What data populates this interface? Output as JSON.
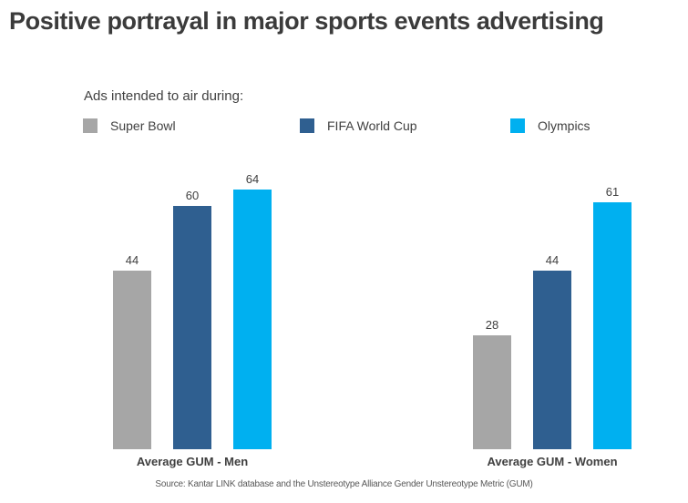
{
  "header": {
    "title": "Positive portrayal in major sports events advertising"
  },
  "legend": {
    "intro": "Ads intended to air during:",
    "items": [
      {
        "label": "Super Bowl",
        "color": "#A6A6A6"
      },
      {
        "label": "FIFA World Cup",
        "color": "#2F5F90"
      },
      {
        "label": "Olympics",
        "color": "#00B0F0"
      }
    ]
  },
  "chart_data": {
    "type": "bar",
    "title": "Positive portrayal in major sports events advertising",
    "categories": [
      "Average GUM - Men",
      "Average GUM - Women"
    ],
    "series": [
      {
        "name": "Super Bowl",
        "color": "#A6A6A6",
        "values": [
          44,
          28
        ]
      },
      {
        "name": "FIFA World Cup",
        "color": "#2F5F90",
        "values": [
          60,
          44
        ]
      },
      {
        "name": "Olympics",
        "color": "#00B0F0",
        "values": [
          64,
          61
        ]
      }
    ],
    "value_labels": true,
    "axes_visible": false,
    "grid": false,
    "legend_position": "top-left",
    "ylim": [
      0,
      70
    ]
  },
  "footer": {
    "source": "Source: Kantar LINK database and the Unstereotype Alliance Gender Unstereotype Metric (GUM)"
  }
}
